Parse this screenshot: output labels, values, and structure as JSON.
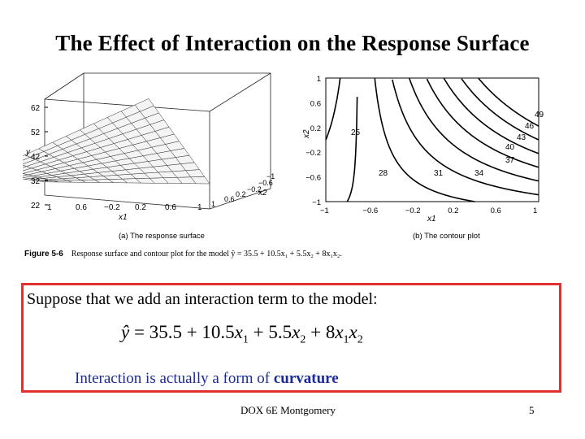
{
  "title": "The Effect of Interaction on the Response Surface",
  "figure": {
    "caption_label": "Figure 5-6",
    "caption_text": "Response surface and contour plot for the model ŷ = 35.5 + 10.5x₁ + 5.5x₂ + 8x₁x₂.",
    "left_panel": {
      "subtitle": "(a) The response surface",
      "y_axis_label": "y",
      "y_ticks": [
        "62",
        "52",
        "42",
        "32",
        "22"
      ],
      "x1_label": "x1",
      "x1_ticks": [
        "1",
        "0.6",
        "−0.2",
        "0.2",
        "0.6",
        "1"
      ],
      "x2_label": "x2",
      "x2_ticks": [
        "1",
        "0.6",
        "0.2",
        "−0.2",
        "−0.6",
        "−1"
      ]
    },
    "right_panel": {
      "subtitle": "(b) The contour plot",
      "x_label": "x1",
      "y_label": "x2",
      "x_ticks": [
        "−1",
        "−0.6",
        "−0.2",
        "0.2",
        "0.6",
        "1"
      ],
      "y_ticks": [
        "1",
        "0.6",
        "0.2",
        "−0.2",
        "−0.6",
        "−1"
      ],
      "contour_levels": [
        "25",
        "28",
        "31",
        "34",
        "37",
        "40",
        "43",
        "46",
        "49"
      ]
    }
  },
  "box": {
    "intro": "Suppose that we add an interaction term to the model:",
    "note_term1": "Interaction",
    "note_middle": " is actually a form of ",
    "note_term2": "curvature"
  },
  "footer": "DOX 6E Montgomery",
  "page_number": "5"
}
